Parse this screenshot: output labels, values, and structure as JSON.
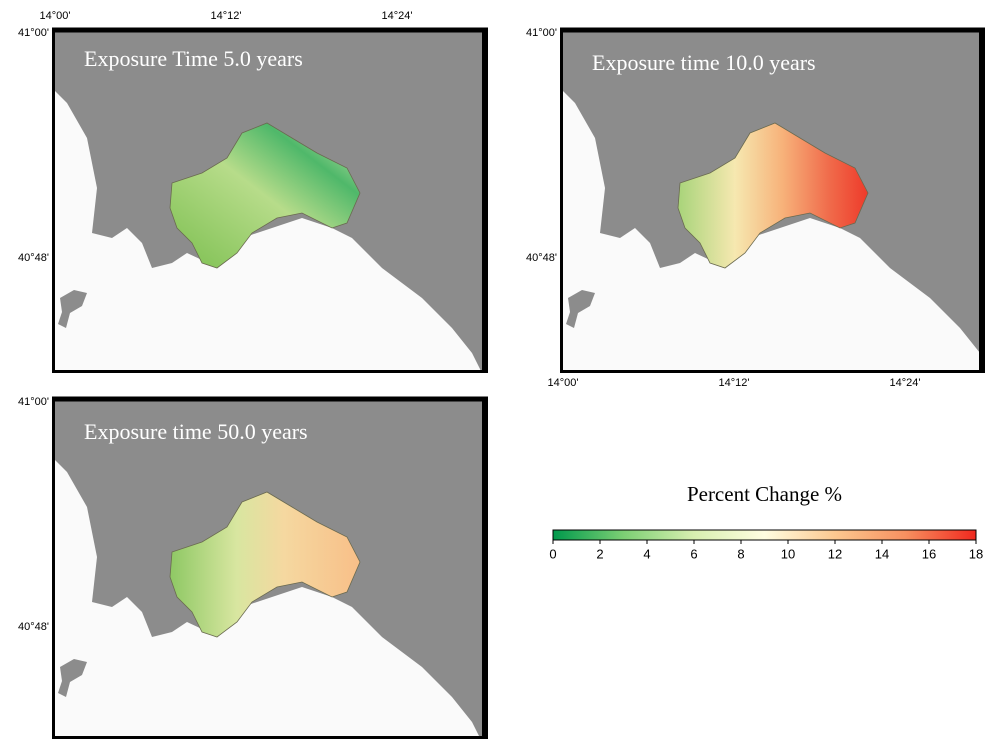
{
  "panels": [
    {
      "title": "Exposure Time 5.0 years",
      "lon_labels": [
        "14°00'",
        "14°12'",
        "14°24'"
      ],
      "lat_labels": [
        "41°00'",
        "40°48'"
      ]
    },
    {
      "title": "Exposure time 10.0 years",
      "lon_labels": [
        "14°00'",
        "14°12'",
        "14°24'"
      ],
      "lat_labels": [
        "41°00'",
        "40°48'"
      ]
    },
    {
      "title": "Exposure time 50.0 years",
      "lat_labels": [
        "41°00'",
        "40°48'"
      ]
    }
  ],
  "colorbar": {
    "title": "Percent Change %",
    "range": [
      0,
      18
    ],
    "ticks": [
      0,
      2,
      4,
      6,
      8,
      10,
      12,
      14,
      16,
      18
    ],
    "colors": [
      "#00994c",
      "#7ccf74",
      "#d8efb0",
      "#fffde0",
      "#fcc890",
      "#f79060",
      "#f0281e"
    ]
  }
}
